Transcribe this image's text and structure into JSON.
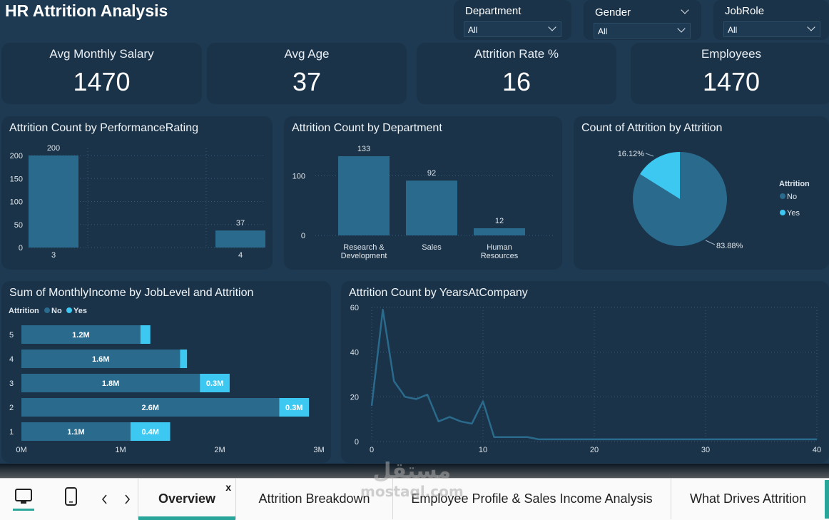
{
  "title": "HR Attrition Analysis",
  "filters": [
    {
      "label": "Department",
      "value": "All"
    },
    {
      "label": "Gender",
      "value": "All"
    },
    {
      "label": "JobRole",
      "value": "All"
    }
  ],
  "kpis": [
    {
      "label": "Avg Monthly Salary",
      "value": "1470"
    },
    {
      "label": "Avg Age",
      "value": "37"
    },
    {
      "label": "Attrition Rate %",
      "value": "16"
    },
    {
      "label": "Employees",
      "value": "1470"
    }
  ],
  "colors": {
    "no": "#2a6a8c",
    "yes": "#3dc8f2",
    "panel": "#1a3349",
    "bg": "#1d3a52",
    "active_tab": "#2aa59a"
  },
  "chart_data": [
    {
      "type": "bar",
      "title": "Attrition Count by PerformanceRating",
      "categories": [
        "3",
        "4"
      ],
      "values": [
        200,
        37
      ],
      "yticks": [
        "0",
        "50",
        "100",
        "150",
        "200"
      ],
      "ylim": [
        0,
        200
      ]
    },
    {
      "type": "bar",
      "title": "Attrition Count by Department",
      "categories": [
        "Research & Development",
        "Sales",
        "Human Resources"
      ],
      "values": [
        133,
        92,
        12
      ],
      "yticks": [
        "0",
        "100"
      ],
      "ylim": [
        0,
        133
      ]
    },
    {
      "type": "pie",
      "title": "Count of Attrition by Attrition",
      "legend_title": "Attrition",
      "series": [
        {
          "name": "No",
          "value": 83.88,
          "label": "83.88%"
        },
        {
          "name": "Yes",
          "value": 16.12,
          "label": "16.12%"
        }
      ]
    },
    {
      "type": "bar",
      "orientation": "horizontal-stacked",
      "title": "Sum of MonthlyIncome by JobLevel and Attrition",
      "legend_title": "Attrition",
      "categories": [
        "5",
        "4",
        "3",
        "2",
        "1"
      ],
      "series": [
        {
          "name": "No",
          "values": [
            1.2,
            1.6,
            1.8,
            2.6,
            1.1
          ],
          "labels": [
            "1.2M",
            "1.6M",
            "1.8M",
            "2.6M",
            "1.1M"
          ]
        },
        {
          "name": "Yes",
          "values": [
            0.1,
            0.07,
            0.3,
            0.3,
            0.4
          ],
          "labels": [
            "",
            "",
            "0.3M",
            "0.3M",
            "0.4M"
          ]
        }
      ],
      "xticks": [
        "0M",
        "1M",
        "2M",
        "3M"
      ],
      "xlim": [
        0,
        3
      ]
    },
    {
      "type": "line",
      "title": "Attrition Count by YearsAtCompany",
      "x": [
        0,
        1,
        2,
        3,
        4,
        5,
        6,
        7,
        8,
        9,
        10,
        11,
        12,
        13,
        14,
        15,
        16,
        17,
        18,
        19,
        20,
        21,
        22,
        23,
        24,
        25,
        26,
        27,
        28,
        29,
        30,
        31,
        32,
        33,
        34,
        35,
        36,
        37,
        38,
        39,
        40
      ],
      "y": [
        16,
        59,
        27,
        20,
        19,
        21,
        9,
        11,
        9,
        8,
        18,
        2,
        2,
        2,
        2,
        1,
        1,
        1,
        1,
        1,
        1,
        1,
        1,
        1,
        1,
        1,
        1,
        1,
        1,
        1,
        1,
        1,
        1,
        1,
        1,
        1,
        1,
        1,
        1,
        1,
        1
      ],
      "xticks": [
        "0",
        "10",
        "20",
        "30",
        "40"
      ],
      "yticks": [
        "0",
        "20",
        "40",
        "60"
      ],
      "xlim": [
        0,
        40
      ],
      "ylim": [
        0,
        60
      ]
    }
  ],
  "nav": {
    "tabs": [
      {
        "label": "Overview",
        "close": "x"
      },
      {
        "label": "Attrition Breakdown"
      },
      {
        "label": "Employee Profile & Sales Income Analysis"
      },
      {
        "label": "What Drives Attrition"
      }
    ],
    "icons": [
      "desktop-icon",
      "mobile-icon",
      "prev-icon",
      "next-icon"
    ]
  },
  "watermark": {
    "arabic": "مستقل",
    "latin": "mostaql.com"
  }
}
